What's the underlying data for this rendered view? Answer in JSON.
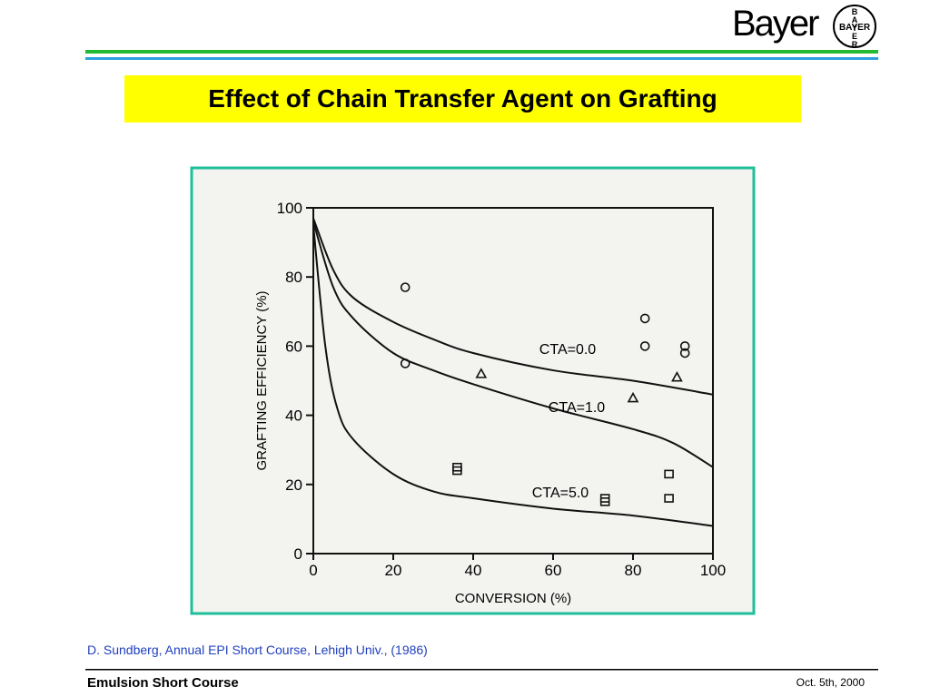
{
  "header": {
    "brand": "Bayer",
    "logo_text": "BAYER"
  },
  "title": "Effect of Chain Transfer Agent on Grafting",
  "chart_data": {
    "type": "line",
    "xlabel": "CONVERSION (%)",
    "ylabel": "GRAFTING EFFICIENCY (%)",
    "xlim": [
      0,
      100
    ],
    "ylim": [
      0,
      100
    ],
    "xticks": [
      0,
      20,
      40,
      60,
      80,
      100
    ],
    "yticks": [
      0,
      20,
      40,
      60,
      80,
      100
    ],
    "series": [
      {
        "name": "CTA=0.0",
        "type": "line",
        "color": "#111",
        "x": [
          0,
          5,
          10,
          20,
          30,
          40,
          60,
          80,
          100
        ],
        "values": [
          97,
          82,
          74,
          67,
          62,
          58,
          53,
          50,
          46
        ]
      },
      {
        "name": "CTA=1.0",
        "type": "line",
        "color": "#111",
        "x": [
          0,
          5,
          10,
          20,
          30,
          40,
          60,
          80,
          90,
          100
        ],
        "values": [
          96,
          77,
          68,
          58,
          53,
          49,
          42,
          36,
          32,
          25
        ]
      },
      {
        "name": "CTA=5.0",
        "type": "line",
        "color": "#111",
        "x": [
          0,
          3,
          6,
          10,
          20,
          30,
          40,
          60,
          80,
          100
        ],
        "values": [
          95,
          60,
          42,
          33,
          23,
          18,
          16,
          13,
          11,
          8
        ]
      },
      {
        "type": "scatter",
        "marker": "circle",
        "color": "#111",
        "x": [
          23,
          23,
          83,
          83,
          93,
          93
        ],
        "values": [
          77,
          55,
          68,
          60,
          60,
          58
        ]
      },
      {
        "type": "scatter",
        "marker": "triangle",
        "color": "#111",
        "x": [
          42,
          80,
          91
        ],
        "values": [
          52,
          45,
          51
        ]
      },
      {
        "type": "scatter",
        "marker": "square",
        "color": "#111",
        "x": [
          36,
          36,
          73,
          73,
          89,
          89
        ],
        "values": [
          25,
          24,
          16,
          15,
          23,
          16
        ]
      }
    ]
  },
  "citation": "D. Sundberg, Annual EPI Short Course, Lehigh Univ., (1986)",
  "footer": {
    "left": "Emulsion Short Course",
    "right": "Oct. 5th, 2000"
  }
}
